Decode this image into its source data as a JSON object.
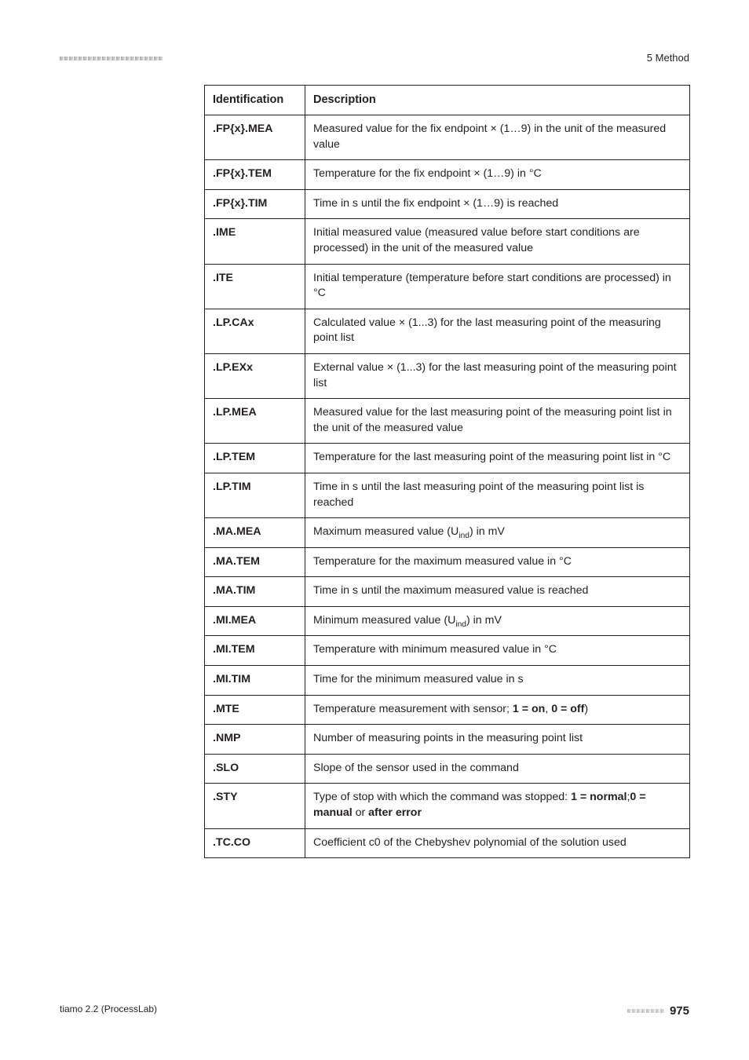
{
  "header": {
    "section": "5 Method",
    "stripe_count": 22
  },
  "table": {
    "columns": [
      "Identification",
      "Description"
    ],
    "rows": [
      {
        "ident": ".FP{x}.MEA",
        "desc_parts": [
          {
            "t": "Measured value for the fix endpoint × (1…9) in the unit of the measured value"
          }
        ]
      },
      {
        "ident": ".FP{x}.TEM",
        "desc_parts": [
          {
            "t": "Temperature for the fix endpoint × (1…9) in °C"
          }
        ]
      },
      {
        "ident": ".FP{x}.TIM",
        "desc_parts": [
          {
            "t": "Time in s until the fix endpoint × (1…9) is reached"
          }
        ]
      },
      {
        "ident": ".IME",
        "desc_parts": [
          {
            "t": "Initial measured value (measured value before start conditions are processed) in the unit of the measured value"
          }
        ]
      },
      {
        "ident": ".ITE",
        "desc_parts": [
          {
            "t": "Initial temperature (temperature before start conditions are processed) in °C"
          }
        ]
      },
      {
        "ident": ".LP.CAx",
        "desc_parts": [
          {
            "t": "Calculated value × (1...3) for the last measuring point of the measuring point list"
          }
        ]
      },
      {
        "ident": ".LP.EXx",
        "desc_parts": [
          {
            "t": "External value × (1...3) for the last measuring point of the measuring point list"
          }
        ]
      },
      {
        "ident": ".LP.MEA",
        "desc_parts": [
          {
            "t": "Measured value for the last measuring point of the measuring point list in the unit of the measured value"
          }
        ]
      },
      {
        "ident": ".LP.TEM",
        "desc_parts": [
          {
            "t": "Temperature for the last measuring point of the measuring point list in °C"
          }
        ]
      },
      {
        "ident": ".LP.TIM",
        "desc_parts": [
          {
            "t": "Time in s until the last measuring point of the measuring point list is reached"
          }
        ]
      },
      {
        "ident": ".MA.MEA",
        "desc_parts": [
          {
            "t": "Maximum measured value (U"
          },
          {
            "t": "ind",
            "sub": true
          },
          {
            "t": ") in mV"
          }
        ]
      },
      {
        "ident": ".MA.TEM",
        "desc_parts": [
          {
            "t": "Temperature for the maximum measured value in °C"
          }
        ]
      },
      {
        "ident": ".MA.TIM",
        "desc_parts": [
          {
            "t": "Time in s until the maximum measured value is reached"
          }
        ]
      },
      {
        "ident": ".MI.MEA",
        "desc_parts": [
          {
            "t": "Minimum measured value (U"
          },
          {
            "t": "ind",
            "sub": true
          },
          {
            "t": ") in mV"
          }
        ]
      },
      {
        "ident": ".MI.TEM",
        "desc_parts": [
          {
            "t": "Temperature with minimum measured value in °C"
          }
        ]
      },
      {
        "ident": ".MI.TIM",
        "desc_parts": [
          {
            "t": "Time for the minimum measured value in s"
          }
        ]
      },
      {
        "ident": ".MTE",
        "desc_parts": [
          {
            "t": "Temperature measurement with sensor; "
          },
          {
            "t": "1 = on",
            "b": true
          },
          {
            "t": ", "
          },
          {
            "t": "0 = off",
            "b": true
          },
          {
            "t": ")"
          }
        ]
      },
      {
        "ident": ".NMP",
        "desc_parts": [
          {
            "t": "Number of measuring points in the measuring point list"
          }
        ]
      },
      {
        "ident": ".SLO",
        "desc_parts": [
          {
            "t": "Slope of the sensor used in the command"
          }
        ]
      },
      {
        "ident": ".STY",
        "desc_parts": [
          {
            "t": "Type of stop with which the command was stopped: "
          },
          {
            "t": "1 = normal",
            "b": true
          },
          {
            "t": ";"
          },
          {
            "t": "0 = manual",
            "b": true
          },
          {
            "t": " or "
          },
          {
            "t": "after error",
            "b": true
          }
        ]
      },
      {
        "ident": ".TC.CO",
        "desc_parts": [
          {
            "t": "Coefficient c0 of the Chebyshev polynomial of the solution used"
          }
        ]
      }
    ]
  },
  "footer": {
    "left": "tiamo 2.2 (ProcessLab)",
    "right_page": "975",
    "stripe_count": 8
  }
}
